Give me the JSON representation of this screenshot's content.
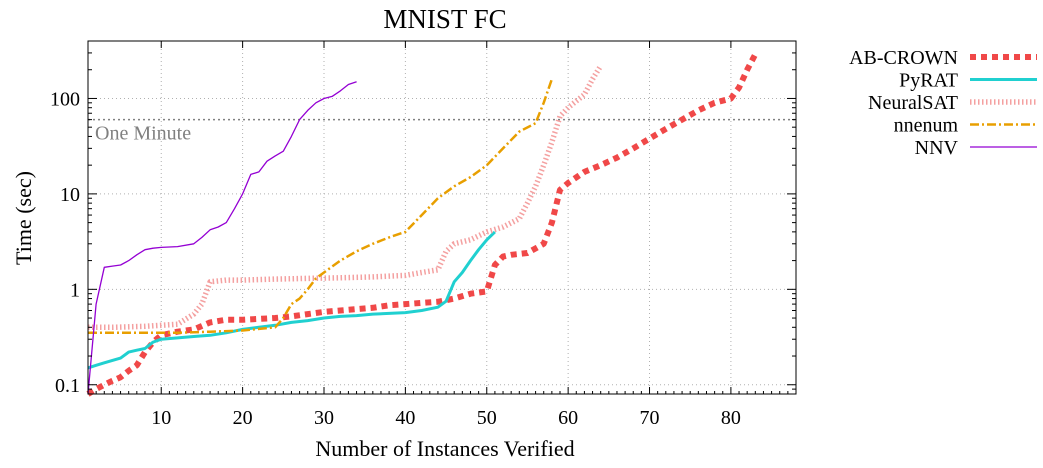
{
  "chart_data": {
    "type": "line",
    "title": "MNIST FC",
    "xlabel": "Number of Instances Verified",
    "ylabel": "Time (sec)",
    "xlim": [
      1,
      88
    ],
    "ylim": [
      0.08,
      400
    ],
    "yscale": "log",
    "grid": true,
    "legend_position": "outside-right",
    "x_ticks": [
      10,
      20,
      30,
      40,
      50,
      60,
      70,
      80
    ],
    "x_tick_labels": [
      "10",
      "20",
      "30",
      "40",
      "50",
      "60",
      "70",
      "80"
    ],
    "y_ticks": [
      0.1,
      1,
      10,
      100
    ],
    "y_tick_labels": [
      "0.1",
      "1",
      "10",
      "100"
    ],
    "reference_line": {
      "y": 60,
      "label": "One Minute",
      "color": "#808080"
    },
    "series": [
      {
        "name": "AB-CROWN",
        "color": "#f04848",
        "style": "dotted-thick",
        "x": [
          1,
          2,
          3,
          4,
          5,
          6,
          7,
          8,
          9,
          10,
          12,
          14,
          16,
          18,
          20,
          22,
          24,
          26,
          28,
          30,
          32,
          34,
          36,
          38,
          40,
          42,
          44,
          46,
          48,
          50,
          51,
          52,
          53,
          55,
          57,
          58,
          59,
          60,
          62,
          64,
          66,
          68,
          70,
          72,
          74,
          76,
          78,
          80,
          81,
          82,
          83
        ],
        "y": [
          0.08,
          0.09,
          0.1,
          0.11,
          0.12,
          0.14,
          0.16,
          0.22,
          0.28,
          0.33,
          0.36,
          0.38,
          0.45,
          0.48,
          0.48,
          0.49,
          0.5,
          0.52,
          0.55,
          0.58,
          0.6,
          0.62,
          0.64,
          0.68,
          0.7,
          0.72,
          0.74,
          0.8,
          0.9,
          0.95,
          1.8,
          2.2,
          2.3,
          2.4,
          3.0,
          5.0,
          11,
          13,
          17,
          20,
          24,
          30,
          38,
          48,
          60,
          75,
          90,
          100,
          130,
          200,
          290
        ]
      },
      {
        "name": "PyRAT",
        "color": "#20d0d0",
        "style": "solid-thick",
        "x": [
          1,
          2,
          3,
          4,
          5,
          6,
          7,
          8,
          9,
          10,
          12,
          14,
          16,
          18,
          20,
          22,
          24,
          26,
          28,
          30,
          32,
          34,
          36,
          38,
          40,
          42,
          44,
          45,
          46,
          47,
          48,
          49,
          50,
          51
        ],
        "y": [
          0.15,
          0.16,
          0.17,
          0.18,
          0.19,
          0.22,
          0.23,
          0.24,
          0.28,
          0.3,
          0.31,
          0.32,
          0.33,
          0.35,
          0.38,
          0.4,
          0.42,
          0.45,
          0.47,
          0.5,
          0.52,
          0.53,
          0.55,
          0.56,
          0.57,
          0.6,
          0.65,
          0.75,
          1.2,
          1.5,
          2.0,
          2.6,
          3.3,
          4.0
        ]
      },
      {
        "name": "NeuralSAT",
        "color": "#f4a0a0",
        "style": "dense-dashed",
        "x": [
          1,
          4,
          8,
          10,
          12,
          14,
          15,
          16,
          18,
          20,
          24,
          28,
          32,
          36,
          40,
          42,
          44,
          45,
          46,
          48,
          50,
          52,
          54,
          55,
          56,
          57,
          58,
          59,
          60,
          62,
          63,
          64
        ],
        "y": [
          0.4,
          0.4,
          0.41,
          0.42,
          0.43,
          0.55,
          0.7,
          1.2,
          1.25,
          1.25,
          1.28,
          1.3,
          1.32,
          1.35,
          1.4,
          1.5,
          1.6,
          2.5,
          3.0,
          3.3,
          4.0,
          4.5,
          5.5,
          8.0,
          12,
          20,
          35,
          65,
          80,
          110,
          160,
          220
        ]
      },
      {
        "name": "nnenum",
        "color": "#e89f00",
        "style": "dash-dot",
        "x": [
          1,
          4,
          8,
          12,
          16,
          20,
          24,
          25,
          26,
          27,
          28,
          29,
          30,
          32,
          34,
          36,
          38,
          40,
          42,
          44,
          46,
          48,
          50,
          52,
          54,
          56,
          57,
          58
        ],
        "y": [
          0.35,
          0.35,
          0.35,
          0.35,
          0.36,
          0.37,
          0.4,
          0.5,
          0.7,
          0.8,
          1.0,
          1.3,
          1.5,
          2.0,
          2.5,
          3.0,
          3.5,
          4.0,
          6.0,
          9.0,
          12,
          15,
          20,
          30,
          45,
          55,
          90,
          160
        ]
      },
      {
        "name": "NNV",
        "color": "#9400d3",
        "style": "solid-thin",
        "x": [
          1,
          2,
          3,
          4,
          5,
          6,
          7,
          8,
          9,
          10,
          12,
          14,
          15,
          16,
          17,
          18,
          19,
          20,
          21,
          22,
          23,
          24,
          25,
          26,
          27,
          28,
          29,
          30,
          31,
          32,
          33,
          34
        ],
        "y": [
          0.08,
          0.7,
          1.7,
          1.75,
          1.8,
          2.0,
          2.3,
          2.6,
          2.7,
          2.75,
          2.8,
          3.0,
          3.5,
          4.2,
          4.5,
          5.0,
          7.0,
          10,
          16,
          17,
          22,
          25,
          28,
          40,
          60,
          75,
          90,
          100,
          105,
          120,
          140,
          150
        ]
      }
    ]
  }
}
